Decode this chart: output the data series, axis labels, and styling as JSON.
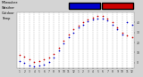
{
  "bg_color": "#d4d4d4",
  "plot_bg_color": "#ffffff",
  "grid_color": "#aaaaaa",
  "legend_temp_color": "#0000cc",
  "legend_wind_color": "#cc0000",
  "temp_color": "#cc0000",
  "wind_chill_color": "#0000cc",
  "title_line1": "Milwaukee",
  "title_line2": "Weather",
  "title_line3": "Outdoor",
  "title_line4": "Temp",
  "x_labels": [
    "1",
    "2",
    "3",
    "4",
    "5",
    "6",
    "7",
    "8",
    "9",
    "10",
    "11",
    "12",
    "1",
    "2",
    "3",
    "4",
    "5",
    "6",
    "7",
    "8",
    "9",
    "10",
    "11",
    "12"
  ],
  "ylim": [
    -5,
    50
  ],
  "yticks": [
    0,
    10,
    20,
    30,
    40
  ],
  "temp_data": [
    8,
    6,
    3,
    1,
    2,
    3,
    5,
    9,
    15,
    22,
    28,
    33,
    37,
    40,
    43,
    45,
    46,
    46,
    44,
    40,
    35,
    30,
    27,
    25
  ],
  "wind_chill_data": [
    2,
    0,
    -3,
    -4,
    -3,
    -2,
    1,
    5,
    12,
    19,
    25,
    30,
    35,
    38,
    41,
    43,
    44,
    44,
    42,
    38,
    33,
    28,
    40,
    38
  ],
  "dot_size": 1.5,
  "title_fontsize": 2.5,
  "tick_fontsize": 2.2
}
